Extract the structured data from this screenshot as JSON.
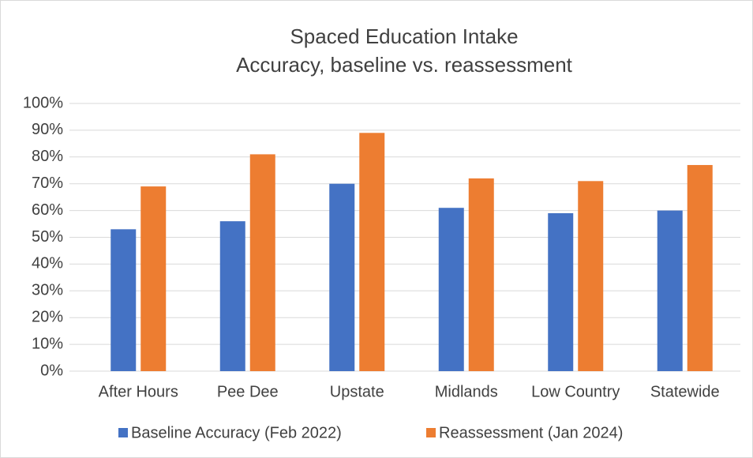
{
  "chart_data": {
    "type": "bar",
    "title": "Spaced Education Intake",
    "subtitle": "Accuracy, baseline vs. reassessment",
    "categories": [
      "After Hours",
      "Pee Dee",
      "Upstate",
      "Midlands",
      "Low Country",
      "Statewide"
    ],
    "series": [
      {
        "name": "Baseline Accuracy (Feb 2022)",
        "color": "#4472c4",
        "values": [
          53,
          56,
          70,
          61,
          59,
          60
        ]
      },
      {
        "name": "Reassessment (Jan 2024)",
        "color": "#ed7d31",
        "values": [
          69,
          81,
          89,
          72,
          71,
          77
        ]
      }
    ],
    "ylim": [
      0,
      100
    ],
    "yticks": [
      {
        "value": 0,
        "label": "0%"
      },
      {
        "value": 10,
        "label": "10%"
      },
      {
        "value": 20,
        "label": "20%"
      },
      {
        "value": 30,
        "label": "30%"
      },
      {
        "value": 40,
        "label": "40%"
      },
      {
        "value": 50,
        "label": "50%"
      },
      {
        "value": 60,
        "label": "60%"
      },
      {
        "value": 70,
        "label": "70%"
      },
      {
        "value": 80,
        "label": "80%"
      },
      {
        "value": 90,
        "label": "90%"
      },
      {
        "value": 100,
        "label": "100%"
      }
    ],
    "grid": true,
    "legend": "bottom"
  }
}
